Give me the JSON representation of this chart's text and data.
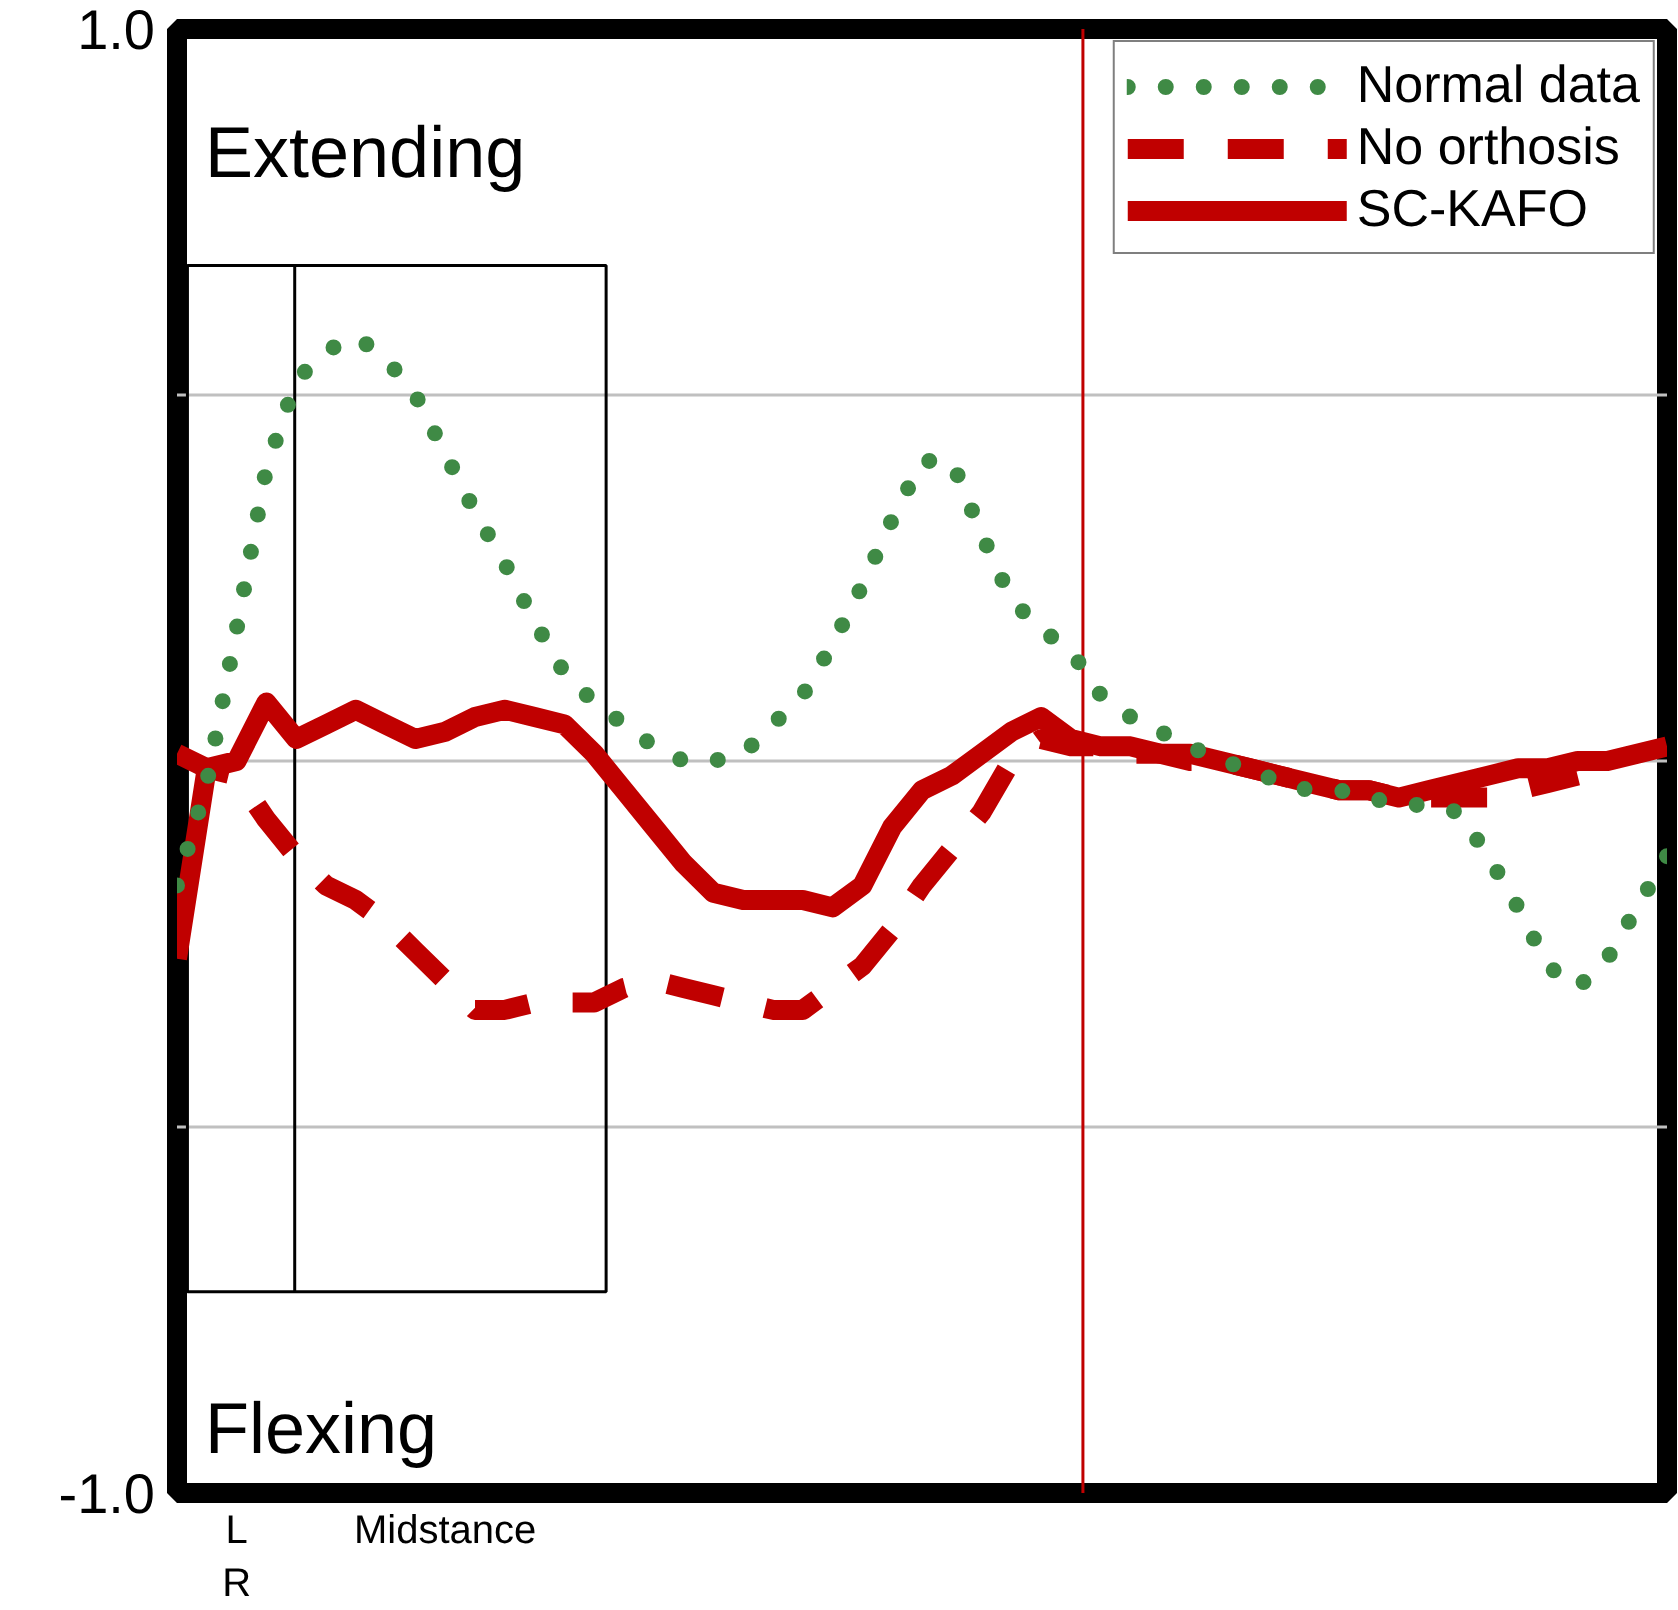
{
  "chart_data": {
    "type": "line",
    "annotations": [
      "Extending",
      "Flexing"
    ],
    "categories": [
      null,
      null,
      "L\nR",
      null,
      null,
      null,
      null,
      null,
      null,
      "Midstance",
      null,
      null,
      null,
      null,
      null,
      null,
      null,
      null,
      null,
      null,
      null,
      null,
      null,
      null,
      null,
      null,
      null,
      null,
      null,
      null,
      null,
      null,
      null,
      null,
      null,
      null,
      null,
      null,
      null,
      null,
      null,
      null,
      null,
      null,
      null,
      null,
      null,
      null,
      null,
      null,
      null
    ],
    "ylim": [
      -1.0,
      1.0
    ],
    "yticks": [
      {
        "value": -1.0,
        "label": "-1.0"
      },
      {
        "value": -0.5,
        "label": null
      },
      {
        "value": 0,
        "label": null
      },
      {
        "value": 0.5,
        "label": null
      },
      {
        "value": 1.0,
        "label": "1.0"
      }
    ],
    "grid": "y",
    "legend": "top right",
    "series": [
      {
        "name": "Normal data",
        "color": "#3f8a45",
        "line_style": "dotted",
        "values": [
          -0.17,
          -0.03,
          0.18,
          0.4,
          0.52,
          0.56,
          0.58,
          0.55,
          0.5,
          0.42,
          0.34,
          0.27,
          0.19,
          0.12,
          0.08,
          0.05,
          0.02,
          0.0,
          0.0,
          0.01,
          0.05,
          0.09,
          0.16,
          0.24,
          0.33,
          0.41,
          0.41,
          0.31,
          0.22,
          0.18,
          0.15,
          0.09,
          0.06,
          0.04,
          0.02,
          0.0,
          -0.01,
          -0.03,
          -0.04,
          -0.04,
          -0.05,
          -0.06,
          -0.06,
          -0.07,
          -0.13,
          -0.2,
          -0.28,
          -0.31,
          -0.27,
          -0.2,
          -0.13
        ]
      },
      {
        "name": "No orthosis",
        "color": "#c00000",
        "line_style": "dashed",
        "values": [
          0.01,
          -0.01,
          -0.02,
          -0.08,
          -0.13,
          -0.17,
          -0.19,
          -0.22,
          -0.26,
          -0.3,
          -0.34,
          -0.34,
          -0.33,
          -0.33,
          -0.33,
          -0.31,
          -0.3,
          -0.31,
          -0.32,
          -0.33,
          -0.34,
          -0.34,
          -0.31,
          -0.28,
          -0.23,
          -0.17,
          -0.12,
          -0.07,
          0.0,
          0.03,
          0.02,
          0.02,
          0.01,
          0.01,
          0.0,
          0.0,
          -0.01,
          -0.02,
          -0.03,
          -0.04,
          -0.04,
          -0.05,
          -0.05,
          -0.05,
          -0.05,
          -0.04,
          -0.03,
          -0.02,
          null,
          null,
          null
        ]
      },
      {
        "name": "SC-KAFO",
        "color": "#c00000",
        "line_style": "solid",
        "values": [
          -0.27,
          -0.01,
          0.0,
          0.08,
          0.03,
          0.05,
          0.07,
          0.05,
          0.03,
          0.04,
          0.06,
          0.07,
          0.06,
          0.05,
          0.01,
          -0.04,
          -0.09,
          -0.14,
          -0.18,
          -0.19,
          -0.19,
          -0.19,
          -0.2,
          -0.17,
          -0.09,
          -0.04,
          -0.02,
          0.01,
          0.04,
          0.06,
          0.03,
          0.02,
          0.02,
          0.01,
          0.01,
          0.0,
          -0.01,
          -0.02,
          -0.03,
          -0.04,
          -0.04,
          -0.05,
          -0.04,
          -0.03,
          -0.02,
          -0.01,
          -0.01,
          0.0,
          0.0,
          0.01,
          0.02
        ]
      }
    ]
  }
}
